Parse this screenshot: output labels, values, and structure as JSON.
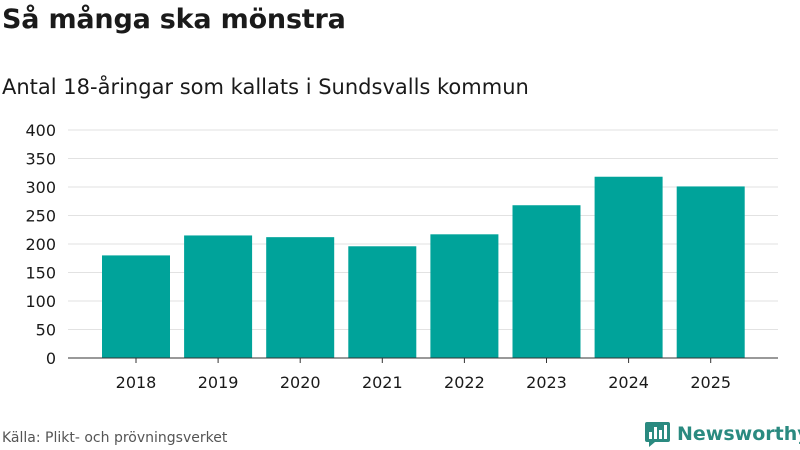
{
  "title": "Så många ska mönstra",
  "subtitle": "Antal 18-åringar som kallats i Sundsvalls kommun",
  "source": "Källa: Plikt- och prövningsverket",
  "brand": {
    "name": "Newsworthy",
    "icon": "newsworthy-logo-icon",
    "color": "#2a8a80"
  },
  "colors": {
    "bar": "#00a39a",
    "grid": "#e2e2e2",
    "axis": "#333333",
    "text": "#1a1a1a"
  },
  "chart_data": {
    "type": "bar",
    "categories": [
      "2018",
      "2019",
      "2020",
      "2021",
      "2022",
      "2023",
      "2024",
      "2025"
    ],
    "values": [
      180,
      215,
      212,
      196,
      217,
      268,
      318,
      301
    ],
    "ylim": [
      0,
      400
    ],
    "yticks": [
      0,
      50,
      100,
      150,
      200,
      250,
      300,
      350,
      400
    ],
    "grid": true,
    "legend": "none"
  }
}
